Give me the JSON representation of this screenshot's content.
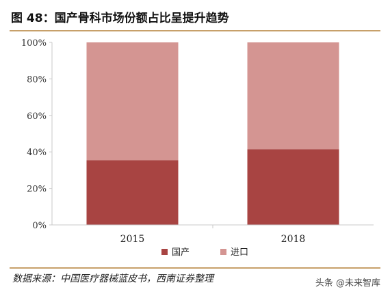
{
  "figure": {
    "title": "图 48：国产骨科市场份额占比呈提升趋势",
    "source": "数据来源：中国医疗器械蓝皮书，西南证券整理",
    "watermark": "头条 @未来智库"
  },
  "chart_data": {
    "type": "bar",
    "stacked": true,
    "categories": [
      "2015",
      "2018"
    ],
    "series": [
      {
        "name": "国产",
        "values": [
          35.5,
          41.5
        ],
        "color": "#a84442"
      },
      {
        "name": "进口",
        "values": [
          64.5,
          58.5
        ],
        "color": "#d49592"
      }
    ],
    "ylim": [
      0,
      100
    ],
    "yticks": [
      "0%",
      "20%",
      "40%",
      "60%",
      "80%",
      "100%"
    ],
    "grid": false,
    "legend": "bottom",
    "axis_color": "#c9c9c9"
  }
}
